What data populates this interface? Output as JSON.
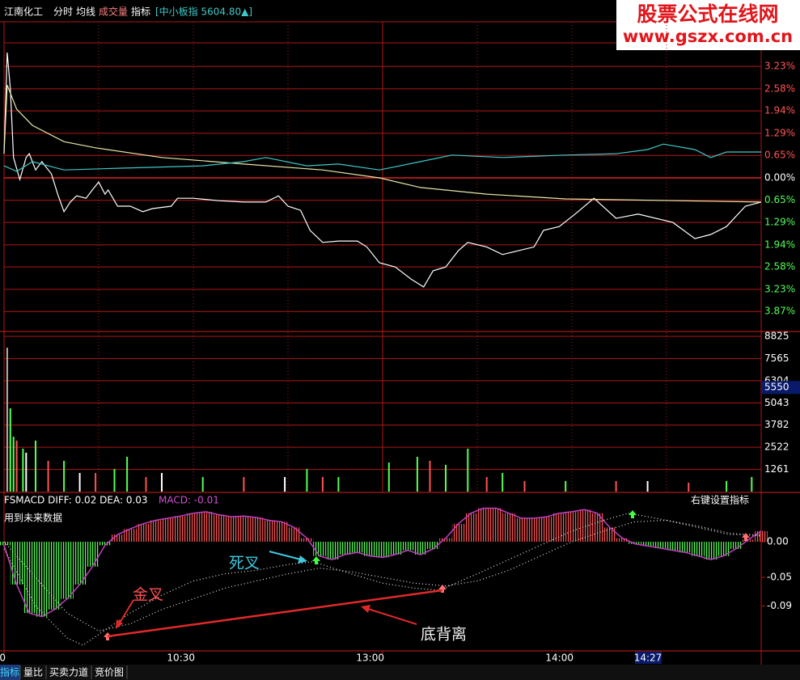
{
  "toolbar": {
    "stock": "江南化工",
    "tabs": [
      "分时",
      "均线",
      "成交量",
      "指标"
    ],
    "index": "[中小板指 5604.80▲]"
  },
  "watermark": {
    "title": "股票公式在线网",
    "url": "www.gszx.com.cn"
  },
  "price": {
    "xlim": [
      0,
      240
    ],
    "ylim": [
      -4.45,
      4.52
    ],
    "yticks": [
      {
        "value": 3.23,
        "label": "3.23%"
      },
      {
        "value": 2.58,
        "label": "2.58%"
      },
      {
        "value": 1.94,
        "label": "1.94%"
      },
      {
        "value": 1.29,
        "label": "1.29%"
      },
      {
        "value": 0.65,
        "label": "0.65%"
      },
      {
        "value": 0,
        "label": "0.00%"
      },
      {
        "value": -0.65,
        "label": "0.65%"
      },
      {
        "value": -1.29,
        "label": "1.29%"
      },
      {
        "value": -1.94,
        "label": "1.94%"
      },
      {
        "value": -2.58,
        "label": "2.58%"
      },
      {
        "value": -3.23,
        "label": "3.23%"
      },
      {
        "value": -3.87,
        "label": "3.87%"
      }
    ],
    "series": [
      {
        "color": "#ffffff",
        "x": [
          0,
          1,
          2,
          3,
          5,
          7,
          8,
          10,
          12,
          13,
          15,
          17,
          19,
          21,
          23,
          26,
          28,
          30,
          32,
          33,
          36,
          40,
          44,
          47,
          53,
          55,
          60,
          68,
          76,
          83,
          87,
          90,
          94,
          97,
          101,
          106,
          112,
          115,
          119,
          124,
          129,
          133,
          136,
          140,
          144,
          147,
          153,
          158,
          163,
          168,
          171,
          176,
          181,
          187,
          194,
          201,
          212,
          219,
          224,
          229,
          235,
          240
        ],
        "values": [
          0.7,
          3.63,
          2.58,
          0.59,
          -0.05,
          0.59,
          0.7,
          0.23,
          0.47,
          0.35,
          0.12,
          -0.47,
          -0.98,
          -0.7,
          -0.52,
          -0.59,
          -0.35,
          -0.12,
          -0.47,
          -0.35,
          -0.82,
          -0.82,
          -0.98,
          -0.89,
          -0.82,
          -0.59,
          -0.59,
          -0.66,
          -0.7,
          -0.7,
          -0.52,
          -0.82,
          -0.94,
          -1.52,
          -1.87,
          -1.83,
          -1.83,
          -2.0,
          -2.46,
          -2.58,
          -2.93,
          -3.16,
          -2.69,
          -2.58,
          -2.11,
          -1.87,
          -2.0,
          -2.22,
          -2.11,
          -2.0,
          -1.52,
          -1.41,
          -1.05,
          -0.59,
          -1.17,
          -1.05,
          -1.29,
          -1.76,
          -1.64,
          -1.41,
          -0.82,
          -0.7
        ]
      },
      {
        "color": "#e6e6a8",
        "x": [
          0,
          1,
          4,
          9,
          19,
          29,
          50,
          76,
          101,
          119,
          132,
          153,
          178,
          240
        ],
        "values": [
          0.7,
          2.69,
          1.99,
          1.52,
          1.05,
          0.87,
          0.59,
          0.4,
          0.23,
          0,
          -0.28,
          -0.47,
          -0.61,
          -0.7
        ]
      },
      {
        "color": "#40c8c8",
        "x": [
          0,
          4,
          9,
          14,
          19,
          37,
          63,
          76,
          83,
          96,
          106,
          119,
          132,
          142,
          158,
          178,
          194,
          204,
          209,
          219,
          224,
          229,
          240
        ],
        "values": [
          0.35,
          0.19,
          0.47,
          0.35,
          0.23,
          0.28,
          0.35,
          0.47,
          0.59,
          0.35,
          0.4,
          0.23,
          0.47,
          0.66,
          0.59,
          0.66,
          0.7,
          0.82,
          0.98,
          0.82,
          0.59,
          0.75,
          0.75
        ]
      }
    ]
  },
  "volume": {
    "ylim": [
      0,
      9100
    ],
    "yticks": [
      8825,
      7565,
      6304,
      5043,
      3782,
      2522,
      1261
    ],
    "current": 5550,
    "x": [
      1,
      2,
      3,
      4,
      6,
      7,
      10,
      14,
      19,
      24,
      29,
      35,
      39,
      45,
      50,
      63,
      76,
      89,
      96,
      101,
      106,
      122,
      131,
      135,
      140,
      147,
      153,
      158,
      165,
      178,
      194,
      204,
      217,
      229,
      237
    ],
    "values": [
      8180,
      4730,
      3120,
      2900,
      2440,
      2210,
      2900,
      1750,
      1750,
      1060,
      1060,
      1290,
      1980,
      830,
      1060,
      830,
      830,
      830,
      1290,
      830,
      830,
      1650,
      1980,
      1750,
      1520,
      2440,
      830,
      1060,
      600,
      600,
      600,
      600,
      510,
      600,
      830
    ],
    "colors": [
      "#b0b0b0",
      "#54ff54",
      "#54ff54",
      "#ff5454",
      "#54ff54",
      "#ffffff",
      "#54ff54",
      "#ff5454",
      "#54ff54",
      "#ffffff",
      "#ff5454",
      "#54ff54",
      "#54ff54",
      "#ff5454",
      "#ffffff",
      "#54ff54",
      "#ff5454",
      "#ffffff",
      "#54ff54",
      "#ff5454",
      "#54ff54",
      "#54ff54",
      "#54ff54",
      "#ff5454",
      "#54ff54",
      "#54ff54",
      "#ff5454",
      "#54ff54",
      "#ff5454",
      "#54ff54",
      "#ff5454",
      "#ffffff",
      "#ff5454",
      "#54ff54",
      "#54ff54"
    ]
  },
  "macd": {
    "header": "FSMACD DIFF: 0.02 DEA: 0.03",
    "macd_text": "MACD: -0.01",
    "note": "用到未来数据",
    "setting": "右键设置指标",
    "ylim": [
      -0.153,
      0.068
    ],
    "yticks": [
      {
        "value": 0,
        "label": "0.00"
      },
      -0.05,
      -0.09
    ],
    "up_color": "#ff5454",
    "down_color": "#54ff54",
    "line_color": "#c040c0",
    "x": [
      0,
      4,
      8,
      12,
      16,
      20,
      24,
      28,
      32,
      36,
      40,
      44,
      48,
      52,
      56,
      60,
      64,
      68,
      72,
      76,
      80,
      84,
      88,
      92,
      96,
      100,
      104,
      108,
      112,
      116,
      120,
      124,
      128,
      132,
      136,
      140,
      144,
      148,
      152,
      156,
      160,
      164,
      168,
      172,
      176,
      180,
      184,
      188,
      192,
      196,
      200,
      204,
      208,
      212,
      216,
      220,
      224,
      228,
      232,
      236,
      240
    ],
    "values": [
      -0.005,
      -0.06,
      -0.1,
      -0.105,
      -0.095,
      -0.08,
      -0.06,
      -0.035,
      -0.005,
      0.01,
      0.018,
      0.025,
      0.03,
      0.033,
      0.036,
      0.04,
      0.042,
      0.038,
      0.035,
      0.036,
      0.034,
      0.03,
      0.028,
      0.02,
      0.005,
      -0.02,
      -0.025,
      -0.018,
      -0.015,
      -0.02,
      -0.022,
      -0.018,
      -0.012,
      -0.018,
      -0.01,
      0.005,
      0.025,
      0.04,
      0.047,
      0.047,
      0.04,
      0.033,
      0.033,
      0.035,
      0.04,
      0.042,
      0.045,
      0.04,
      0.02,
      0.005,
      -0.003,
      -0.006,
      -0.009,
      -0.012,
      -0.015,
      -0.02,
      -0.025,
      -0.02,
      -0.01,
      0.003,
      0.015
    ],
    "diff": {
      "x": [
        0,
        10,
        20,
        25,
        30,
        40,
        50,
        60,
        70,
        80,
        90,
        98,
        110,
        120,
        130,
        138,
        150,
        160,
        170,
        180,
        190,
        198,
        210,
        220,
        230,
        240
      ],
      "values": [
        -0.01,
        -0.09,
        -0.135,
        -0.145,
        -0.13,
        -0.1,
        -0.075,
        -0.055,
        -0.045,
        -0.04,
        -0.032,
        -0.028,
        -0.045,
        -0.058,
        -0.065,
        -0.068,
        -0.045,
        -0.025,
        -0.005,
        0.015,
        0.03,
        0.04,
        0.03,
        0.02,
        0.01,
        0.01
      ]
    },
    "dea": {
      "x": [
        0,
        10,
        20,
        30,
        40,
        50,
        60,
        70,
        80,
        90,
        100,
        110,
        120,
        130,
        140,
        150,
        160,
        170,
        180,
        190,
        200,
        210,
        220,
        230,
        240
      ],
      "values": [
        0,
        -0.05,
        -0.1,
        -0.125,
        -0.115,
        -0.095,
        -0.08,
        -0.065,
        -0.055,
        -0.045,
        -0.037,
        -0.042,
        -0.05,
        -0.058,
        -0.062,
        -0.055,
        -0.04,
        -0.02,
        0,
        0.015,
        0.028,
        0.03,
        0.022,
        0.012,
        0.008
      ]
    }
  },
  "xaxis": {
    "ticks": [
      0,
      {
        "value": 60,
        "label": "10:30"
      },
      {
        "value": 120,
        "label": "13:00"
      },
      {
        "value": 180,
        "label": "14:00"
      }
    ],
    "cursor": "14:27"
  },
  "annotations": {
    "golden": "金叉",
    "death": "死叉",
    "divergence": "底背离"
  },
  "bottom_tabs": [
    "指标",
    "量比",
    "买卖力道",
    "竞价图"
  ]
}
